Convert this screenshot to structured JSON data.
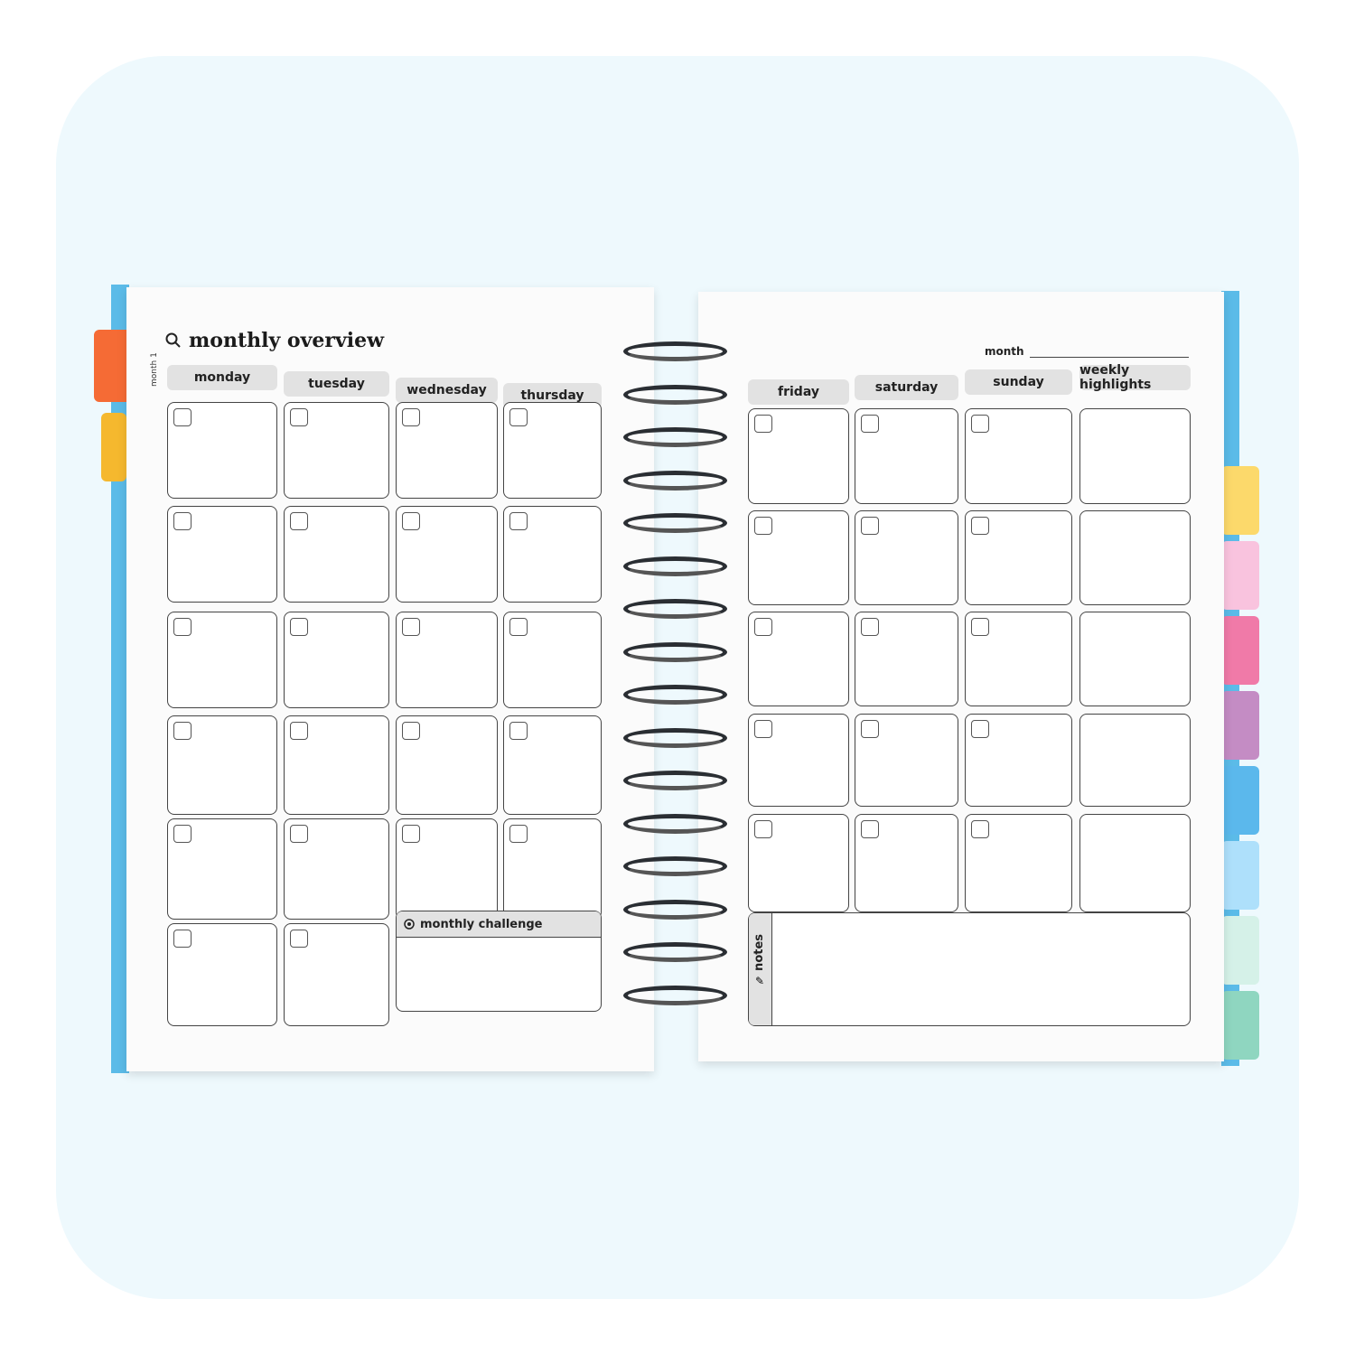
{
  "left_page": {
    "title": "monthly overview",
    "title_icon": "search-icon",
    "side_tab_label": "month 1",
    "days": [
      "monday",
      "tuesday",
      "wednesday",
      "thursday"
    ],
    "monthly_challenge": "monthly challenge",
    "challenge_icon": "target-icon"
  },
  "right_page": {
    "month_label": "month",
    "days": [
      "friday",
      "saturday",
      "sunday",
      "weekly highlights"
    ],
    "notes": "notes",
    "notes_icon": "pencil-icon"
  },
  "colors": {
    "background": "#eef9fd",
    "cover": "#5bbbe8",
    "left_tabs": [
      "#f56b35",
      "#f5b82e"
    ],
    "right_tabs": [
      "#fcd96b",
      "#f9c3de",
      "#f07aa8",
      "#c48cc4",
      "#5bb8ec",
      "#aee0fb",
      "#d5f1e8",
      "#8fd6c0"
    ]
  }
}
